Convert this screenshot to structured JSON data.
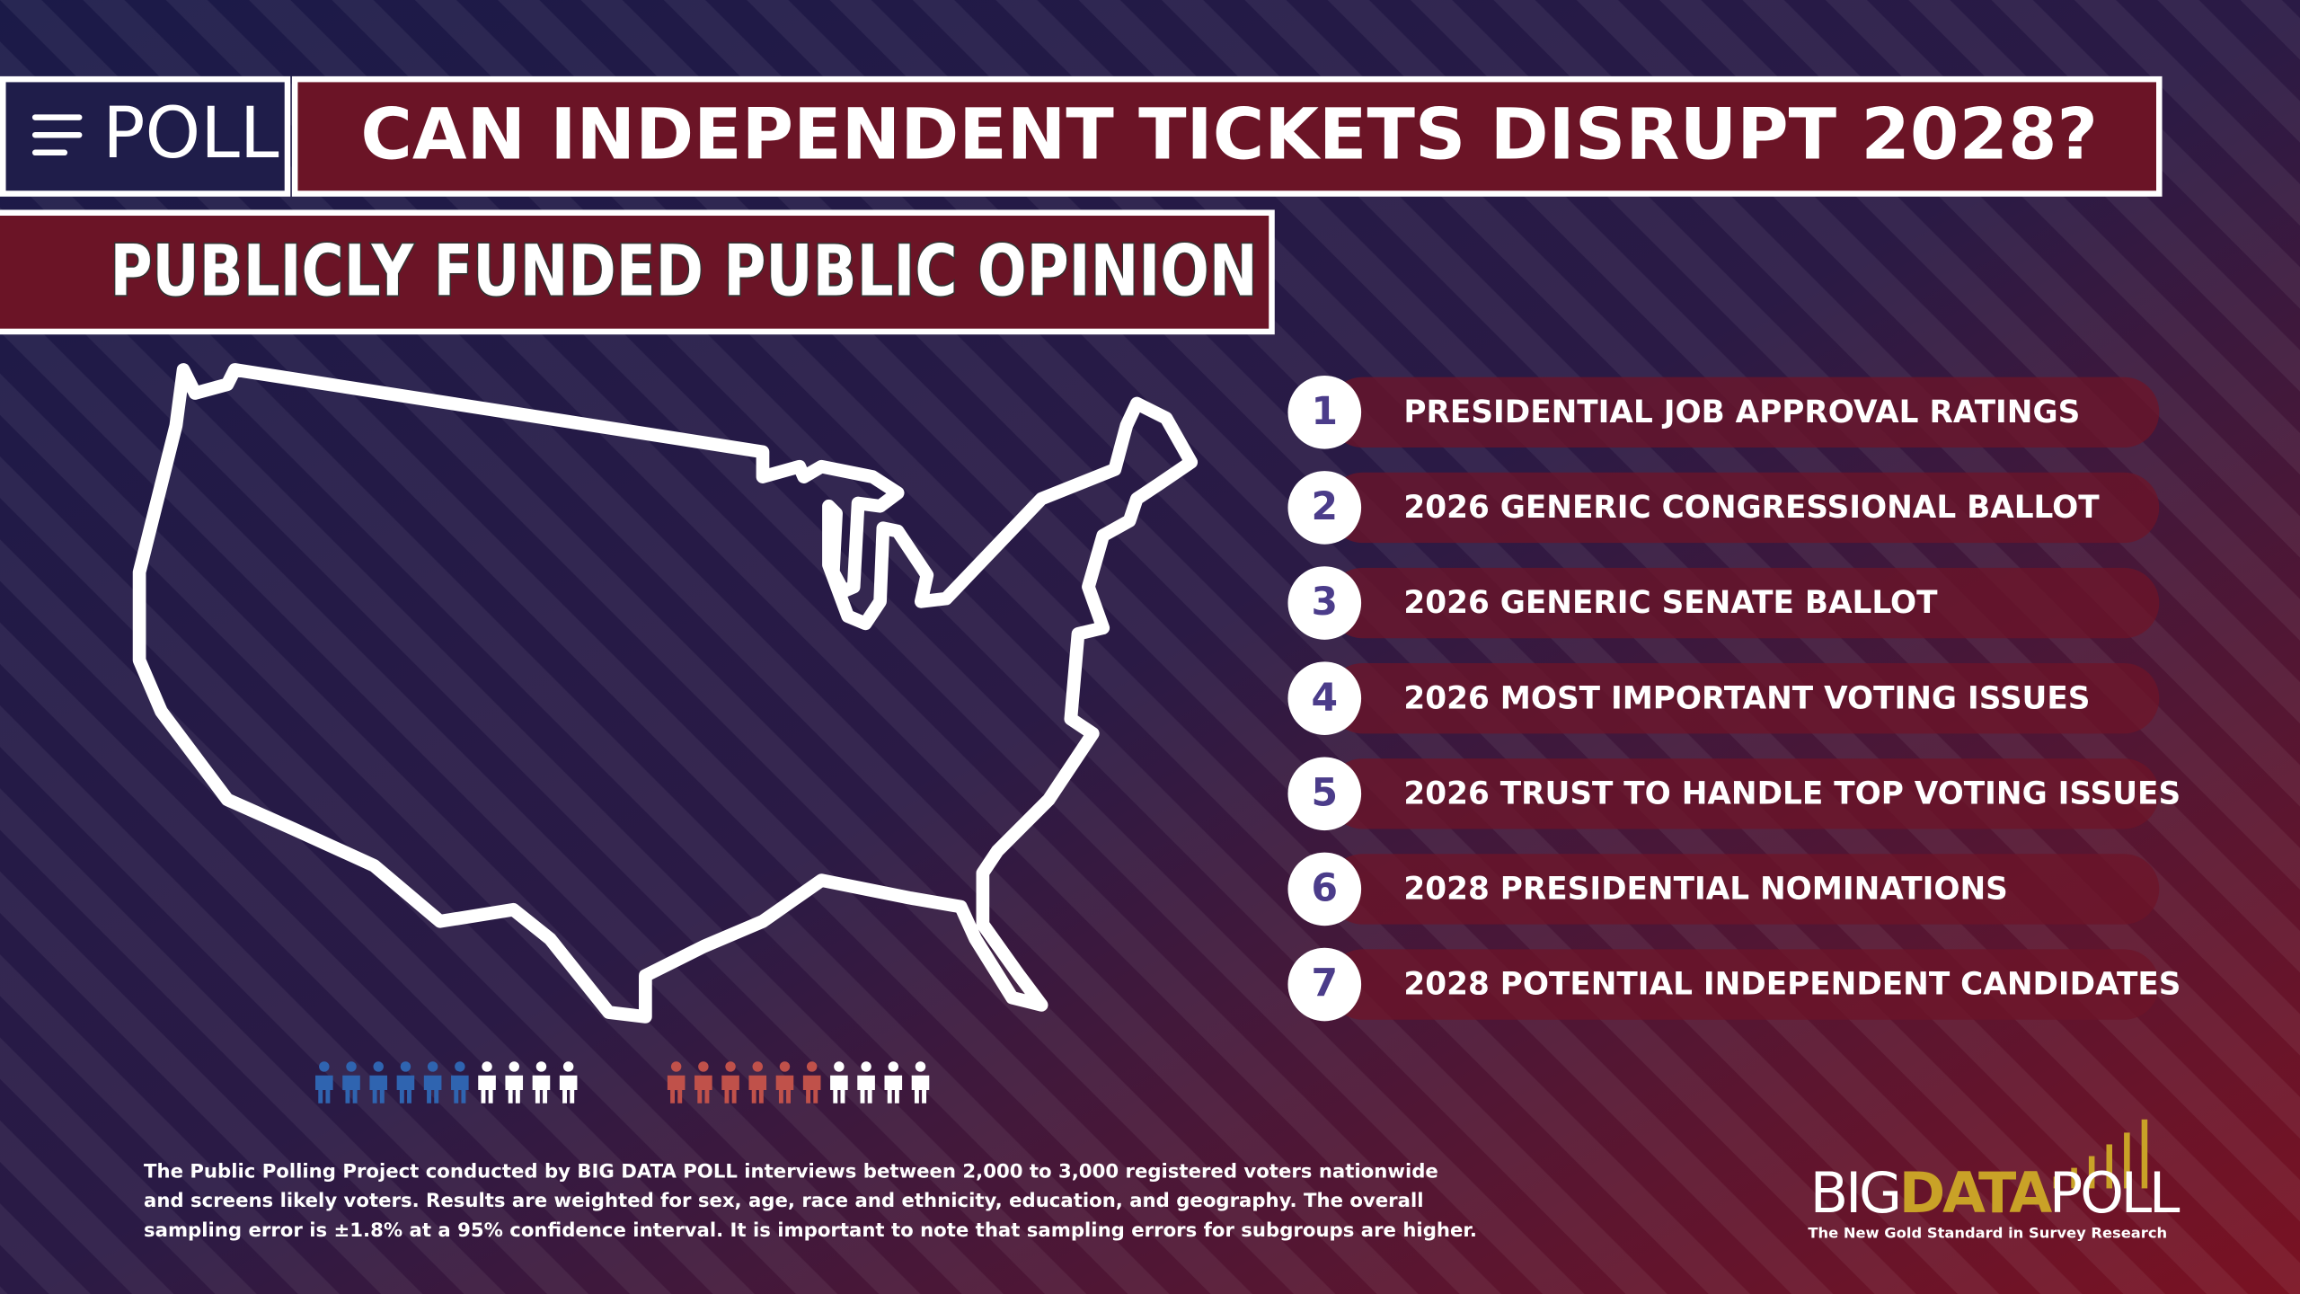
{
  "header": {
    "logo": "POLL",
    "title": "CAN INDEPENDENT TICKETS DISRUPT 2028?",
    "subtitle": "PUBLICLY FUNDED PUBLIC OPINION"
  },
  "items": [
    {
      "number": "1",
      "label": "PRESIDENTIAL JOB APPROVAL RATINGS"
    },
    {
      "number": "2",
      "label": "2026 GENERIC CONGRESSIONAL BALLOT"
    },
    {
      "number": "3",
      "label": "2026 GENERIC SENATE BALLOT"
    },
    {
      "number": "4",
      "label": "2026 MOST IMPORTANT VOTING ISSUES"
    },
    {
      "number": "5",
      "label": "2026 TRUST TO HANDLE TOP VOTING ISSUES"
    },
    {
      "number": "6",
      "label": "2028 PRESIDENTIAL NOMINATIONS"
    },
    {
      "number": "7",
      "label": "2028 POTENTIAL INDEPENDENT CANDIDATES"
    }
  ],
  "footnote": [
    "The Public Polling Project conducted by BIG DATA POLL interviews between 2,000 to 3,000 registered voters nationwide",
    "and screens likely voters. Results are weighted for sex, age, race and ethnicity, education, and geography. The overall",
    "sampling error is ±1.8% at a 95% confidence interval. It is important to note that sampling errors for subgroups are higher."
  ],
  "brand": {
    "big": "BIG",
    "data": "DATA",
    "poll": "POLL",
    "tagline": "The New Gold Standard in Survey Research"
  }
}
